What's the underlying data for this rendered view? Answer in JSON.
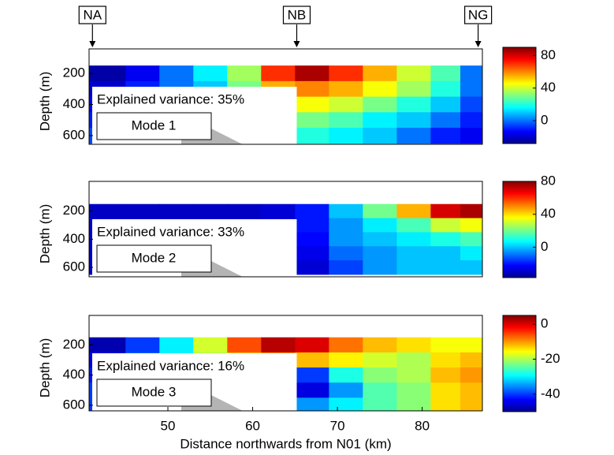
{
  "stations": [
    {
      "label": "NA",
      "x": 41.1
    },
    {
      "label": "NB",
      "x": 65.2
    },
    {
      "label": "NG",
      "x": 86.6
    }
  ],
  "chart_data": [
    {
      "type": "contour",
      "ylabel": "Depth (m)",
      "annotation": "Explained variance: 35%",
      "mode_label": "Mode 1",
      "colormap": "jet",
      "x": [
        43,
        47,
        51,
        55,
        59,
        63,
        67,
        71,
        75,
        79,
        83,
        86
      ],
      "depth": [
        200,
        300,
        400,
        500,
        600
      ],
      "z": [
        [
          -25,
          -15,
          0,
          15,
          35,
          70,
          85,
          70,
          55,
          40,
          25,
          0
        ],
        [
          -20,
          -10,
          0,
          10,
          30,
          55,
          60,
          55,
          45,
          35,
          20,
          0
        ],
        [
          -15,
          -5,
          0,
          10,
          25,
          40,
          45,
          40,
          30,
          20,
          10,
          -5
        ],
        [
          -10,
          0,
          5,
          10,
          20,
          30,
          30,
          25,
          15,
          10,
          0,
          -10
        ],
        [
          -5,
          0,
          5,
          10,
          15,
          20,
          20,
          15,
          10,
          0,
          -10,
          -15
        ]
      ],
      "xlim": [
        40.7,
        87.1
      ],
      "ylim": [
        656,
        43
      ],
      "yticks": [
        200,
        400,
        600
      ],
      "clim": [
        -28,
        90
      ],
      "cticks": [
        80,
        40,
        0
      ]
    },
    {
      "type": "contour",
      "ylabel": "Depth (m)",
      "annotation": "Explained variance: 33%",
      "mode_label": "Mode 2",
      "colormap": "jet",
      "x": [
        43,
        47,
        51,
        55,
        59,
        63,
        67,
        71,
        75,
        79,
        83,
        86
      ],
      "depth": [
        200,
        300,
        400,
        500,
        600
      ],
      "z": [
        [
          -30,
          -30,
          -30,
          -30,
          -30,
          -28,
          -20,
          0,
          20,
          45,
          70,
          75
        ],
        [
          -30,
          -30,
          -30,
          -30,
          -30,
          -28,
          -20,
          -5,
          5,
          15,
          30,
          35
        ],
        [
          -30,
          -30,
          -30,
          -30,
          -30,
          -28,
          -22,
          -5,
          0,
          5,
          10,
          15
        ],
        [
          -30,
          -30,
          -30,
          -30,
          -30,
          -30,
          -25,
          -10,
          -5,
          0,
          0,
          5
        ],
        [
          -30,
          -30,
          -30,
          -30,
          -30,
          -30,
          -28,
          -15,
          -5,
          0,
          0,
          0
        ]
      ],
      "xlim": [
        40.7,
        87.1
      ],
      "ylim": [
        667,
        -11
      ],
      "yticks": [
        200,
        400,
        600
      ],
      "clim": [
        -37,
        80
      ],
      "cticks": [
        80,
        40,
        0
      ]
    },
    {
      "type": "contour",
      "ylabel": "Depth (m)",
      "annotation": "Explained variance: 16%",
      "mode_label": "Mode 3",
      "colormap": "jet",
      "x": [
        43,
        47,
        51,
        55,
        59,
        63,
        67,
        71,
        75,
        79,
        83,
        86
      ],
      "depth": [
        200,
        300,
        400,
        500,
        600
      ],
      "z": [
        [
          -48,
          -40,
          -30,
          -18,
          -6,
          2,
          0,
          -8,
          -12,
          -14,
          -16,
          -16
        ],
        [
          -45,
          -38,
          -30,
          -20,
          -12,
          -10,
          -12,
          -15,
          -18,
          -20,
          -14,
          -12
        ],
        [
          -42,
          -36,
          -30,
          -25,
          -20,
          -30,
          -40,
          -28,
          -22,
          -20,
          -12,
          -10
        ],
        [
          -40,
          -35,
          -30,
          -28,
          -25,
          -35,
          -45,
          -35,
          -25,
          -22,
          -14,
          -12
        ],
        [
          -40,
          -35,
          -30,
          -28,
          -25,
          -30,
          -35,
          -30,
          -25,
          -22,
          -14,
          -12
        ]
      ],
      "xlim": [
        40.7,
        87.1
      ],
      "ylim": [
        637,
        5
      ],
      "yticks": [
        200,
        400,
        600
      ],
      "xticks": [
        50,
        60,
        70,
        80
      ],
      "xlabel": "Distance northwards from N01 (km)",
      "clim": [
        -50,
        5
      ],
      "cticks": [
        0,
        -20,
        -40
      ]
    }
  ]
}
